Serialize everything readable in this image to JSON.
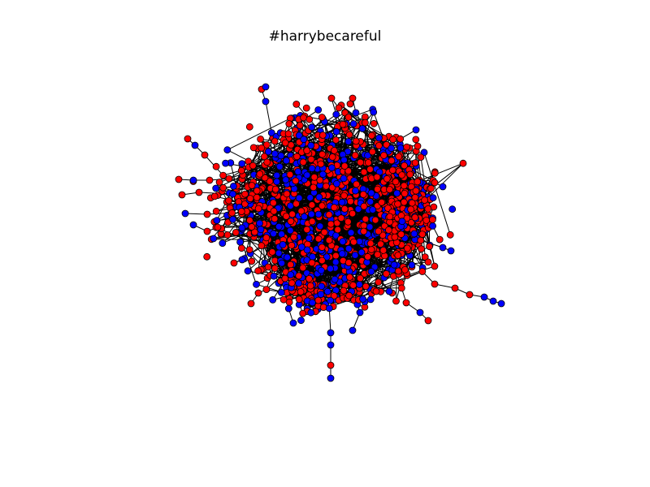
{
  "figure": {
    "title": "#harrybecareful"
  },
  "graph": {
    "type": "network",
    "node_colors": {
      "primary": "#ff0000",
      "secondary": "#0000ff"
    },
    "node_stroke": "#000000",
    "edge_color": "#000000",
    "background": "#ffffff"
  }
}
